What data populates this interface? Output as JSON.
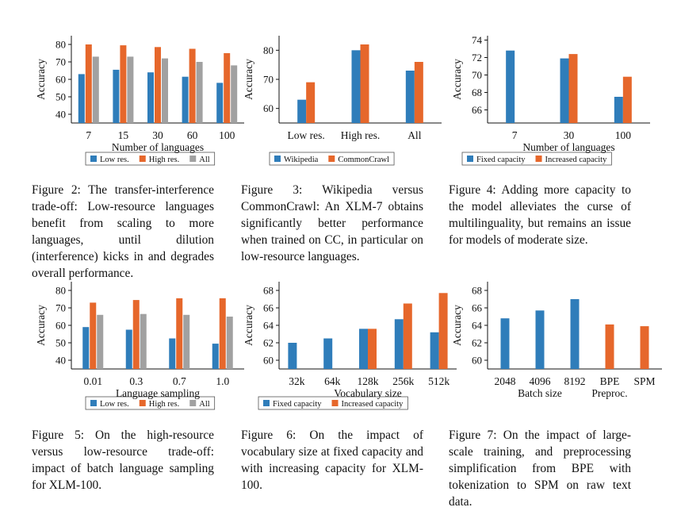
{
  "colors": {
    "blue": "#2f7dba",
    "orange": "#e6672b",
    "gray": "#a1a1a1"
  },
  "chart_data": [
    {
      "id": "fig2",
      "type": "bar",
      "ylabel": "Accuracy",
      "xlabel": "Number of languages",
      "ylim": [
        35,
        85
      ],
      "yticks": [
        40,
        50,
        60,
        70,
        80
      ],
      "categories": [
        "7",
        "15",
        "30",
        "60",
        "100"
      ],
      "legend_position": "bottom",
      "series": [
        {
          "name": "Low res.",
          "color": "#2f7dba",
          "values": [
            63,
            65.5,
            64,
            61.5,
            58
          ]
        },
        {
          "name": "High res.",
          "color": "#e6672b",
          "values": [
            80,
            79.5,
            78.5,
            77.5,
            75
          ]
        },
        {
          "name": "All",
          "color": "#a1a1a1",
          "values": [
            73,
            73,
            72,
            70,
            68
          ]
        }
      ]
    },
    {
      "id": "fig3",
      "type": "bar",
      "ylabel": "Accuracy",
      "xlabel": "",
      "ylim": [
        55,
        85
      ],
      "yticks": [
        60,
        70,
        80
      ],
      "categories": [
        "Low res.",
        "High res.",
        "All"
      ],
      "legend_position": "bottom",
      "series": [
        {
          "name": "Wikipedia",
          "color": "#2f7dba",
          "values": [
            63,
            80,
            73
          ]
        },
        {
          "name": "CommonCrawl",
          "color": "#e6672b",
          "values": [
            69,
            82,
            76
          ]
        }
      ]
    },
    {
      "id": "fig4",
      "type": "bar",
      "ylabel": "Accuracy",
      "xlabel": "Number of languages",
      "ylim": [
        64.5,
        74.5
      ],
      "yticks": [
        66,
        68,
        70,
        72,
        74
      ],
      "categories": [
        "7",
        "30",
        "100"
      ],
      "legend_position": "bottom",
      "series": [
        {
          "name": "Fixed capacity",
          "color": "#2f7dba",
          "values": [
            72.8,
            71.9,
            67.5
          ]
        },
        {
          "name": "Increased capacity",
          "color": "#e6672b",
          "values": [
            null,
            72.4,
            69.8
          ]
        }
      ]
    },
    {
      "id": "fig5",
      "type": "bar",
      "ylabel": "Accuracy",
      "xlabel": "Language sampling",
      "ylim": [
        35,
        85
      ],
      "yticks": [
        40,
        50,
        60,
        70,
        80
      ],
      "categories": [
        "0.01",
        "0.3",
        "0.7",
        "1.0"
      ],
      "legend_position": "bottom",
      "series": [
        {
          "name": "Low res.",
          "color": "#2f7dba",
          "values": [
            59,
            57.5,
            52.5,
            49.5
          ]
        },
        {
          "name": "High res.",
          "color": "#e6672b",
          "values": [
            73,
            74.5,
            75.5,
            75.5
          ]
        },
        {
          "name": "All",
          "color": "#a1a1a1",
          "values": [
            66,
            66.5,
            66,
            65
          ]
        }
      ]
    },
    {
      "id": "fig6",
      "type": "bar",
      "ylabel": "Accuracy",
      "xlabel": "Vocabulary size",
      "ylim": [
        59,
        69
      ],
      "yticks": [
        60,
        62,
        64,
        66,
        68
      ],
      "categories": [
        "32k",
        "64k",
        "128k",
        "256k",
        "512k"
      ],
      "legend_position": "bottom",
      "series": [
        {
          "name": "Fixed capacity",
          "color": "#2f7dba",
          "values": [
            62,
            62.5,
            63.6,
            64.7,
            63.2
          ]
        },
        {
          "name": "Increased capacity",
          "color": "#e6672b",
          "values": [
            null,
            null,
            63.6,
            66.5,
            67.7
          ]
        }
      ]
    },
    {
      "id": "fig7",
      "type": "bar",
      "ylabel": "Accuracy",
      "xlabel": "",
      "ylim": [
        59,
        69
      ],
      "yticks": [
        60,
        62,
        64,
        66,
        68
      ],
      "categories": [
        "2048",
        "4096",
        "8192",
        "BPE",
        "SPM"
      ],
      "group_labels": [
        "Batch size",
        "Preproc."
      ],
      "series": [
        {
          "name": "Batch size",
          "color": "#2f7dba",
          "values": [
            64.8,
            65.7,
            67,
            null,
            null
          ]
        },
        {
          "name": "Preproc.",
          "color": "#e6672b",
          "values": [
            null,
            null,
            null,
            64.1,
            63.9
          ]
        }
      ]
    }
  ],
  "captions": {
    "fig2": "Figure 2: The transfer-interference trade-off: Low-resource languages benefit from scaling to more languages, until dilution (interference) kicks in and degrades overall performance.",
    "fig3": "Figure 3: Wikipedia versus CommonCrawl: An XLM-7 obtains significantly better performance when trained on CC, in particular on low-resource languages.",
    "fig4": "Figure 4: Adding more capacity to the model alleviates the curse of multilinguality, but remains an issue for models of moderate size.",
    "fig5": "Figure 5: On the high-resource versus low-resource trade-off: impact of batch language sampling for XLM-100.",
    "fig6": "Figure 6: On the impact of vocabulary size at fixed capacity and with increasing capacity for XLM-100.",
    "fig7": "Figure 7: On the impact of large-scale training, and preprocessing simplification from BPE with tokenization to SPM on raw text data."
  }
}
